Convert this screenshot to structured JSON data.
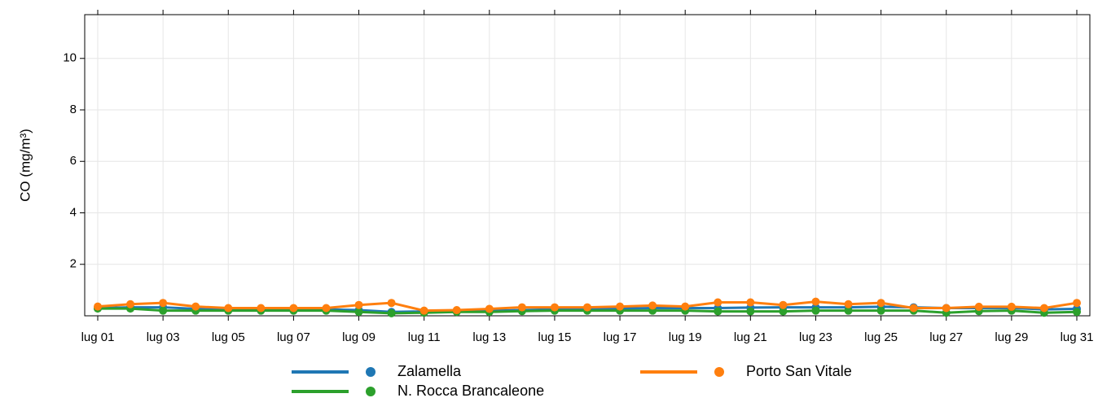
{
  "chart_data": {
    "type": "line",
    "ylabel": "CO (mg/m³)",
    "categories": [
      "lug 01",
      null,
      "lug 03",
      null,
      "lug 05",
      null,
      "lug 07",
      null,
      "lug 09",
      null,
      "lug 11",
      null,
      "lug 13",
      null,
      "lug 15",
      null,
      "lug 17",
      null,
      "lug 19",
      null,
      "lug 21",
      null,
      "lug 23",
      null,
      "lug 25",
      null,
      "lug 27",
      null,
      "lug 29",
      null,
      "lug 31"
    ],
    "series": [
      {
        "name": "Zalamella",
        "color": "#1f77b4",
        "values": [
          0.3,
          0.33,
          0.33,
          0.27,
          0.25,
          0.25,
          0.25,
          0.25,
          0.22,
          0.15,
          0.17,
          0.2,
          0.2,
          0.22,
          0.25,
          0.27,
          0.28,
          0.3,
          0.3,
          0.3,
          0.32,
          0.33,
          0.33,
          0.33,
          0.35,
          0.33,
          0.3,
          0.3,
          0.3,
          0.25,
          0.27
        ]
      },
      {
        "name": "N. Rocca Brancaleone",
        "color": "#2ca02c",
        "values": [
          0.28,
          0.28,
          0.2,
          0.2,
          0.2,
          0.2,
          0.2,
          0.2,
          0.15,
          0.1,
          0.12,
          0.15,
          0.15,
          0.18,
          0.2,
          0.2,
          0.2,
          0.2,
          0.2,
          0.17,
          0.17,
          0.17,
          0.2,
          0.2,
          0.2,
          0.2,
          0.12,
          0.18,
          0.2,
          0.12,
          0.15
        ]
      },
      {
        "name": "Porto San Vitale",
        "color": "#ff7f0e",
        "values": [
          0.36,
          0.45,
          0.5,
          0.36,
          0.3,
          0.3,
          0.3,
          0.3,
          0.42,
          0.5,
          0.2,
          0.22,
          0.27,
          0.33,
          0.33,
          0.33,
          0.36,
          0.4,
          0.36,
          0.52,
          0.52,
          0.42,
          0.55,
          0.45,
          0.5,
          0.3,
          0.3,
          0.35,
          0.35,
          0.3,
          0.5
        ]
      }
    ],
    "ylim": [
      0,
      11.7
    ],
    "yticks": [
      2,
      4,
      6,
      8,
      10
    ],
    "grid": true
  }
}
